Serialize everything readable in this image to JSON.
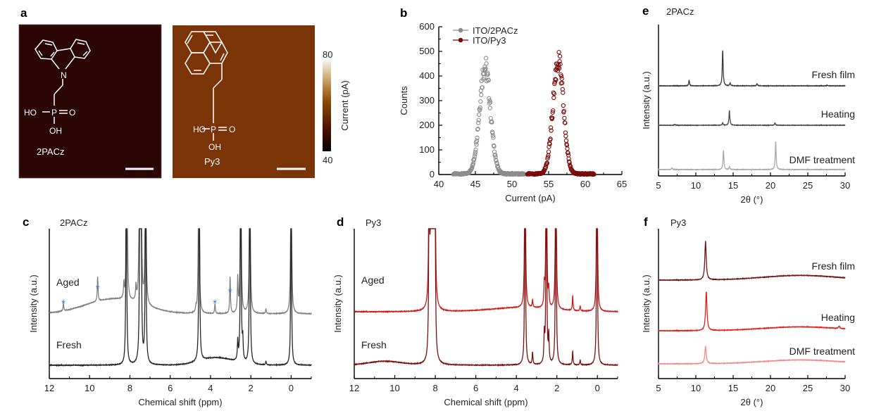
{
  "panels": {
    "a": {
      "label": "a",
      "images": [
        {
          "name": "2PACz",
          "caption": "2PACz",
          "bg_color": "#2a0605"
        },
        {
          "name": "Py3",
          "caption": "Py3",
          "bg_color": "#7a3408"
        }
      ],
      "molecule_labels": {
        "ho": "HO",
        "p": "P",
        "o": "O",
        "oh": "OH",
        "n": "N"
      },
      "colorbar": {
        "min": "40",
        "max": "80",
        "label": "Current (pA)",
        "colors": [
          "#000000",
          "#4a1000",
          "#8a4a05",
          "#c9a46a",
          "#f5f0e6"
        ]
      }
    },
    "b": {
      "label": "b"
    },
    "c": {
      "label": "c",
      "title": "2PACz",
      "star_color": "#3a78d8"
    },
    "d": {
      "label": "d",
      "title": "Py3"
    },
    "e": {
      "label": "e",
      "title": "2PACz"
    },
    "f": {
      "label": "f",
      "title": "Py3"
    }
  },
  "chart_data": [
    {
      "id": "b",
      "type": "scatter",
      "title": "",
      "xlabel": "Current (pA)",
      "ylabel": "Counts",
      "xlim": [
        40,
        65
      ],
      "ylim": [
        0,
        600
      ],
      "xticks": [
        40,
        45,
        50,
        55,
        60,
        65
      ],
      "yticks": [
        0,
        100,
        200,
        300,
        400,
        500,
        600
      ],
      "legend_position": "top-left",
      "series": [
        {
          "name": "ITO/2PACz",
          "color": "#8c8c8c",
          "x_range": [
            42,
            51.7
          ],
          "peak_center": 46.3,
          "peak_height": 440,
          "sigma": 0.75,
          "baseline": 5
        },
        {
          "name": "ITO/Py3",
          "color": "#7a0a0a",
          "x_range": [
            52.1,
            61.2
          ],
          "peak_center": 56.3,
          "peak_height": 460,
          "sigma": 0.72,
          "baseline": 5
        }
      ]
    },
    {
      "id": "c",
      "type": "line",
      "title": "2PACz",
      "xlabel": "Chemical shift (ppm)",
      "ylabel": "Intensity (a.u.)",
      "xlim": [
        12,
        -1
      ],
      "xticks": [
        12,
        10,
        8,
        6,
        4,
        2,
        0
      ],
      "series": [
        {
          "name": "Aged",
          "color": "#808080",
          "peaks": [
            [
              11.3,
              0.15
            ],
            [
              9.6,
              0.5
            ],
            [
              8.3,
              0.3
            ],
            [
              8.15,
              5
            ],
            [
              7.7,
              0.3
            ],
            [
              7.52,
              5
            ],
            [
              7.45,
              5
            ],
            [
              7.22,
              5
            ],
            [
              4.72,
              0.1
            ],
            [
              4.58,
              5
            ],
            [
              3.78,
              0.2
            ],
            [
              3.03,
              0.75
            ],
            [
              2.65,
              0.7
            ],
            [
              2.5,
              5
            ],
            [
              2.05,
              5
            ],
            [
              1.25,
              0.1
            ],
            [
              0.0,
              5
            ]
          ],
          "hump": {
            "center": 8.8,
            "width": 1.4,
            "height": 0.3
          }
        },
        {
          "name": "Fresh",
          "color": "#262626",
          "peaks": [
            [
              8.18,
              5
            ],
            [
              7.5,
              5
            ],
            [
              7.45,
              5
            ],
            [
              7.22,
              5
            ],
            [
              4.56,
              5
            ],
            [
              2.65,
              0.4
            ],
            [
              2.5,
              5
            ],
            [
              2.4,
              0.4
            ],
            [
              2.05,
              5
            ],
            [
              1.25,
              0.08
            ],
            [
              0.0,
              4
            ]
          ],
          "hump": {
            "center": 3.7,
            "width": 0.8,
            "height": 0.15
          }
        }
      ],
      "annotations": [
        "*",
        "*",
        "*",
        "*"
      ],
      "star_positions_ppm": [
        11.3,
        9.6,
        3.78,
        3.03
      ]
    },
    {
      "id": "d",
      "type": "line",
      "title": "Py3",
      "xlabel": "Chemical shift (ppm)",
      "ylabel": "Intensity (a.u.)",
      "xlim": [
        12,
        -1
      ],
      "xticks": [
        12,
        10,
        8,
        6,
        4,
        2,
        0
      ],
      "series": [
        {
          "name": "Aged",
          "color": "#cc1a1a",
          "peaks": [
            [
              8.3,
              5
            ],
            [
              8.22,
              5
            ],
            [
              8.15,
              5
            ],
            [
              8.08,
              5
            ],
            [
              8.02,
              5
            ],
            [
              3.57,
              5
            ],
            [
              3.2,
              0.15
            ],
            [
              2.62,
              0.4
            ],
            [
              2.52,
              5
            ],
            [
              2.4,
              0.35
            ],
            [
              2.05,
              5
            ],
            [
              1.22,
              0.3
            ],
            [
              0.85,
              0.1
            ],
            [
              0.02,
              5
            ]
          ],
          "hump": {
            "center": 3.8,
            "width": 1.5,
            "height": 0.08
          }
        },
        {
          "name": "Fresh",
          "color": "#7a1010",
          "peaks": [
            [
              8.3,
              5
            ],
            [
              8.22,
              5
            ],
            [
              8.15,
              5
            ],
            [
              8.08,
              5
            ],
            [
              8.02,
              5
            ],
            [
              3.57,
              5
            ],
            [
              3.2,
              0.25
            ],
            [
              2.62,
              0.55
            ],
            [
              2.52,
              5
            ],
            [
              2.4,
              0.55
            ],
            [
              2.05,
              5
            ],
            [
              1.22,
              0.28
            ],
            [
              0.85,
              0.1
            ],
            [
              0.02,
              5
            ]
          ],
          "hump": {
            "center": 10.5,
            "width": 0.8,
            "height": 0.08
          }
        }
      ]
    },
    {
      "id": "e",
      "type": "line",
      "title": "2PACz",
      "xlabel": "2θ (°)",
      "ylabel": "Intensity (a.u.)",
      "xlim": [
        5,
        30
      ],
      "xticks": [
        5,
        10,
        15,
        20,
        25,
        30
      ],
      "series": [
        {
          "name": "Fresh film",
          "color": "#3a3a3a",
          "peaks": [
            [
              9.1,
              0.15
            ],
            [
              13.6,
              1.0
            ],
            [
              14.6,
              0.08
            ],
            [
              18.2,
              0.06
            ],
            [
              27.6,
              0.02
            ]
          ]
        },
        {
          "name": "Heating",
          "color": "#4a4a4a",
          "peaks": [
            [
              13.6,
              0.07
            ],
            [
              14.5,
              0.42
            ],
            [
              20.6,
              0.07
            ],
            [
              7.2,
              0.02
            ]
          ]
        },
        {
          "name": "DMF treatment",
          "color": "#a8a8a8",
          "peaks": [
            [
              6.8,
              0.05
            ],
            [
              13.7,
              0.55
            ],
            [
              14.5,
              0.08
            ],
            [
              20.7,
              0.8
            ]
          ]
        }
      ]
    },
    {
      "id": "f",
      "type": "line",
      "title": "Py3",
      "xlabel": "2θ (°)",
      "ylabel": "Intensity (a.u.)",
      "xlim": [
        5,
        30
      ],
      "xticks": [
        5,
        10,
        15,
        20,
        25,
        30
      ],
      "series": [
        {
          "name": "Fresh film",
          "color": "#6e1414",
          "peaks": [
            [
              11.3,
              1.0
            ]
          ],
          "hump": {
            "center": 24,
            "width": 5,
            "height": 0.12
          }
        },
        {
          "name": "Heating",
          "color": "#e0201a",
          "peaks": [
            [
              11.4,
              1.0
            ],
            [
              29.2,
              0.06
            ]
          ],
          "hump": {
            "center": 24,
            "width": 5,
            "height": 0.1
          }
        },
        {
          "name": "DMF treatment",
          "color": "#f08a8a",
          "peaks": [
            [
              11.3,
              0.45
            ]
          ],
          "hump": {
            "center": 24,
            "width": 5,
            "height": 0.1
          }
        }
      ]
    }
  ]
}
